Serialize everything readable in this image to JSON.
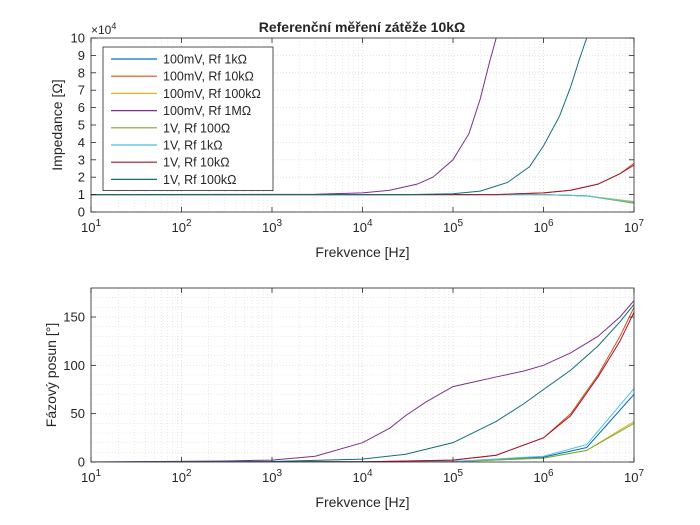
{
  "title": "Referenční měření zátěže 10kΩ",
  "colors": {
    "background": "#ffffff",
    "axis": "#262626",
    "grid": "#dcdcdc"
  },
  "chart_data": [
    {
      "type": "line",
      "title": "Referenční měření zátěže 10kΩ",
      "xlabel": "Frekvence [Hz]",
      "ylabel": "Impedance [Ω]",
      "x_scale": "log",
      "xlim": [
        10,
        10000000
      ],
      "ylim": [
        0,
        10
      ],
      "y_multiplier": "×10^4",
      "x_ticks": [
        10,
        100,
        1000,
        10000,
        100000,
        1000000,
        10000000
      ],
      "x_tick_labels": [
        "10^1",
        "10^2",
        "10^3",
        "10^4",
        "10^5",
        "10^6",
        "10^7"
      ],
      "y_ticks": [
        0,
        1,
        2,
        3,
        4,
        5,
        6,
        7,
        8,
        9,
        10
      ],
      "y_tick_labels": [
        "0",
        "1",
        "2",
        "3",
        "4",
        "5",
        "6",
        "7",
        "8",
        "9",
        "10"
      ],
      "grid": "on (major and minor)",
      "legend_position": "top-left",
      "series": [
        {
          "name": "100mV, Rf 1kΩ",
          "color": "#0072bd",
          "x": [
            10,
            1000000,
            3000000,
            10000000
          ],
          "y": [
            1.0,
            1.0,
            0.93,
            0.55
          ]
        },
        {
          "name": "100mV, Rf 10kΩ",
          "color": "#d95319",
          "x": [
            10,
            300000,
            1000000,
            2000000,
            4000000,
            7000000,
            10000000
          ],
          "y": [
            1.0,
            1.0,
            1.1,
            1.25,
            1.6,
            2.2,
            2.8
          ]
        },
        {
          "name": "100mV, Rf 100kΩ",
          "color": "#edb120",
          "x": [
            10,
            1000000,
            3000000,
            10000000
          ],
          "y": [
            1.0,
            1.0,
            0.93,
            0.6
          ]
        },
        {
          "name": "100mV, Rf 1MΩ",
          "color": "#7e2f8e",
          "x": [
            10,
            3000,
            10000,
            20000,
            40000,
            60000,
            100000,
            150000,
            200000,
            250000,
            300000
          ],
          "y": [
            1.0,
            1.02,
            1.1,
            1.25,
            1.6,
            2.0,
            3.0,
            4.5,
            6.5,
            8.5,
            10.0
          ]
        },
        {
          "name": "1V, Rf 100Ω",
          "color": "#77ac30",
          "x": [
            10,
            1000000,
            3000000,
            10000000
          ],
          "y": [
            1.0,
            1.0,
            0.93,
            0.5
          ]
        },
        {
          "name": "1V, Rf 1kΩ",
          "color": "#4dbeee",
          "x": [
            10,
            1000000,
            3000000,
            10000000
          ],
          "y": [
            1.0,
            1.0,
            0.93,
            0.55
          ]
        },
        {
          "name": "1V, Rf 10kΩ",
          "color": "#a2142f",
          "x": [
            10,
            300000,
            1000000,
            2000000,
            4000000,
            7000000,
            10000000
          ],
          "y": [
            1.0,
            1.0,
            1.1,
            1.25,
            1.6,
            2.2,
            2.7
          ]
        },
        {
          "name": "1V, Rf 100kΩ",
          "color": "#0f6f7a",
          "x": [
            10,
            30000,
            100000,
            200000,
            400000,
            700000,
            1000000,
            1500000,
            2000000,
            2500000,
            3000000
          ],
          "y": [
            1.0,
            1.0,
            1.05,
            1.2,
            1.7,
            2.6,
            3.8,
            5.5,
            7.2,
            8.8,
            10.0
          ]
        }
      ]
    },
    {
      "type": "line",
      "xlabel": "Frekvence [Hz]",
      "ylabel": "Fázový posun [°]",
      "x_scale": "log",
      "xlim": [
        10,
        10000000
      ],
      "ylim": [
        0,
        180
      ],
      "x_ticks": [
        10,
        100,
        1000,
        10000,
        100000,
        1000000,
        10000000
      ],
      "x_tick_labels": [
        "10^1",
        "10^2",
        "10^3",
        "10^4",
        "10^5",
        "10^6",
        "10^7"
      ],
      "y_ticks": [
        0,
        50,
        100,
        150
      ],
      "y_tick_labels": [
        "0",
        "50",
        "100",
        "150"
      ],
      "grid": "on (major and minor)",
      "series": [
        {
          "name": "100mV, Rf 1kΩ",
          "color": "#0072bd",
          "x": [
            10,
            100000,
            1000000,
            3000000,
            10000000
          ],
          "y": [
            0,
            0.5,
            5,
            15,
            70
          ]
        },
        {
          "name": "100mV, Rf 10kΩ",
          "color": "#d95319",
          "x": [
            10,
            10000,
            100000,
            300000,
            1000000,
            2000000,
            4000000,
            7000000,
            10000000
          ],
          "y": [
            0,
            0.2,
            2,
            7,
            25,
            50,
            90,
            130,
            160
          ]
        },
        {
          "name": "100mV, Rf 100kΩ",
          "color": "#edb120",
          "x": [
            10,
            100000,
            1000000,
            3000000,
            10000000
          ],
          "y": [
            0,
            0.3,
            4,
            12,
            42
          ]
        },
        {
          "name": "100mV, Rf 1MΩ",
          "color": "#7e2f8e",
          "x": [
            10,
            300,
            1000,
            3000,
            10000,
            20000,
            30000,
            50000,
            100000,
            300000,
            600000,
            1000000,
            2000000,
            4000000,
            7000000,
            10000000
          ],
          "y": [
            0,
            1,
            2,
            6,
            20,
            35,
            48,
            62,
            78,
            88,
            94,
            100,
            113,
            130,
            150,
            167
          ]
        },
        {
          "name": "1V, Rf 100Ω",
          "color": "#77ac30",
          "x": [
            10,
            100000,
            1000000,
            3000000,
            10000000
          ],
          "y": [
            0,
            0.3,
            4,
            12,
            40
          ]
        },
        {
          "name": "1V, Rf 1kΩ",
          "color": "#4dbeee",
          "x": [
            10,
            100000,
            1000000,
            3000000,
            10000000
          ],
          "y": [
            0,
            0.5,
            6,
            18,
            76
          ]
        },
        {
          "name": "1V, Rf 10kΩ",
          "color": "#a2142f",
          "x": [
            10,
            10000,
            100000,
            300000,
            1000000,
            2000000,
            4000000,
            7000000,
            10000000
          ],
          "y": [
            0,
            0.2,
            2,
            7,
            25,
            48,
            88,
            125,
            155
          ]
        },
        {
          "name": "1V, Rf 100kΩ",
          "color": "#0f6f7a",
          "x": [
            10,
            1000,
            10000,
            30000,
            100000,
            300000,
            600000,
            1000000,
            2000000,
            4000000,
            7000000,
            10000000
          ],
          "y": [
            0,
            0.5,
            3,
            8,
            20,
            42,
            60,
            75,
            95,
            120,
            145,
            163
          ]
        }
      ]
    }
  ]
}
